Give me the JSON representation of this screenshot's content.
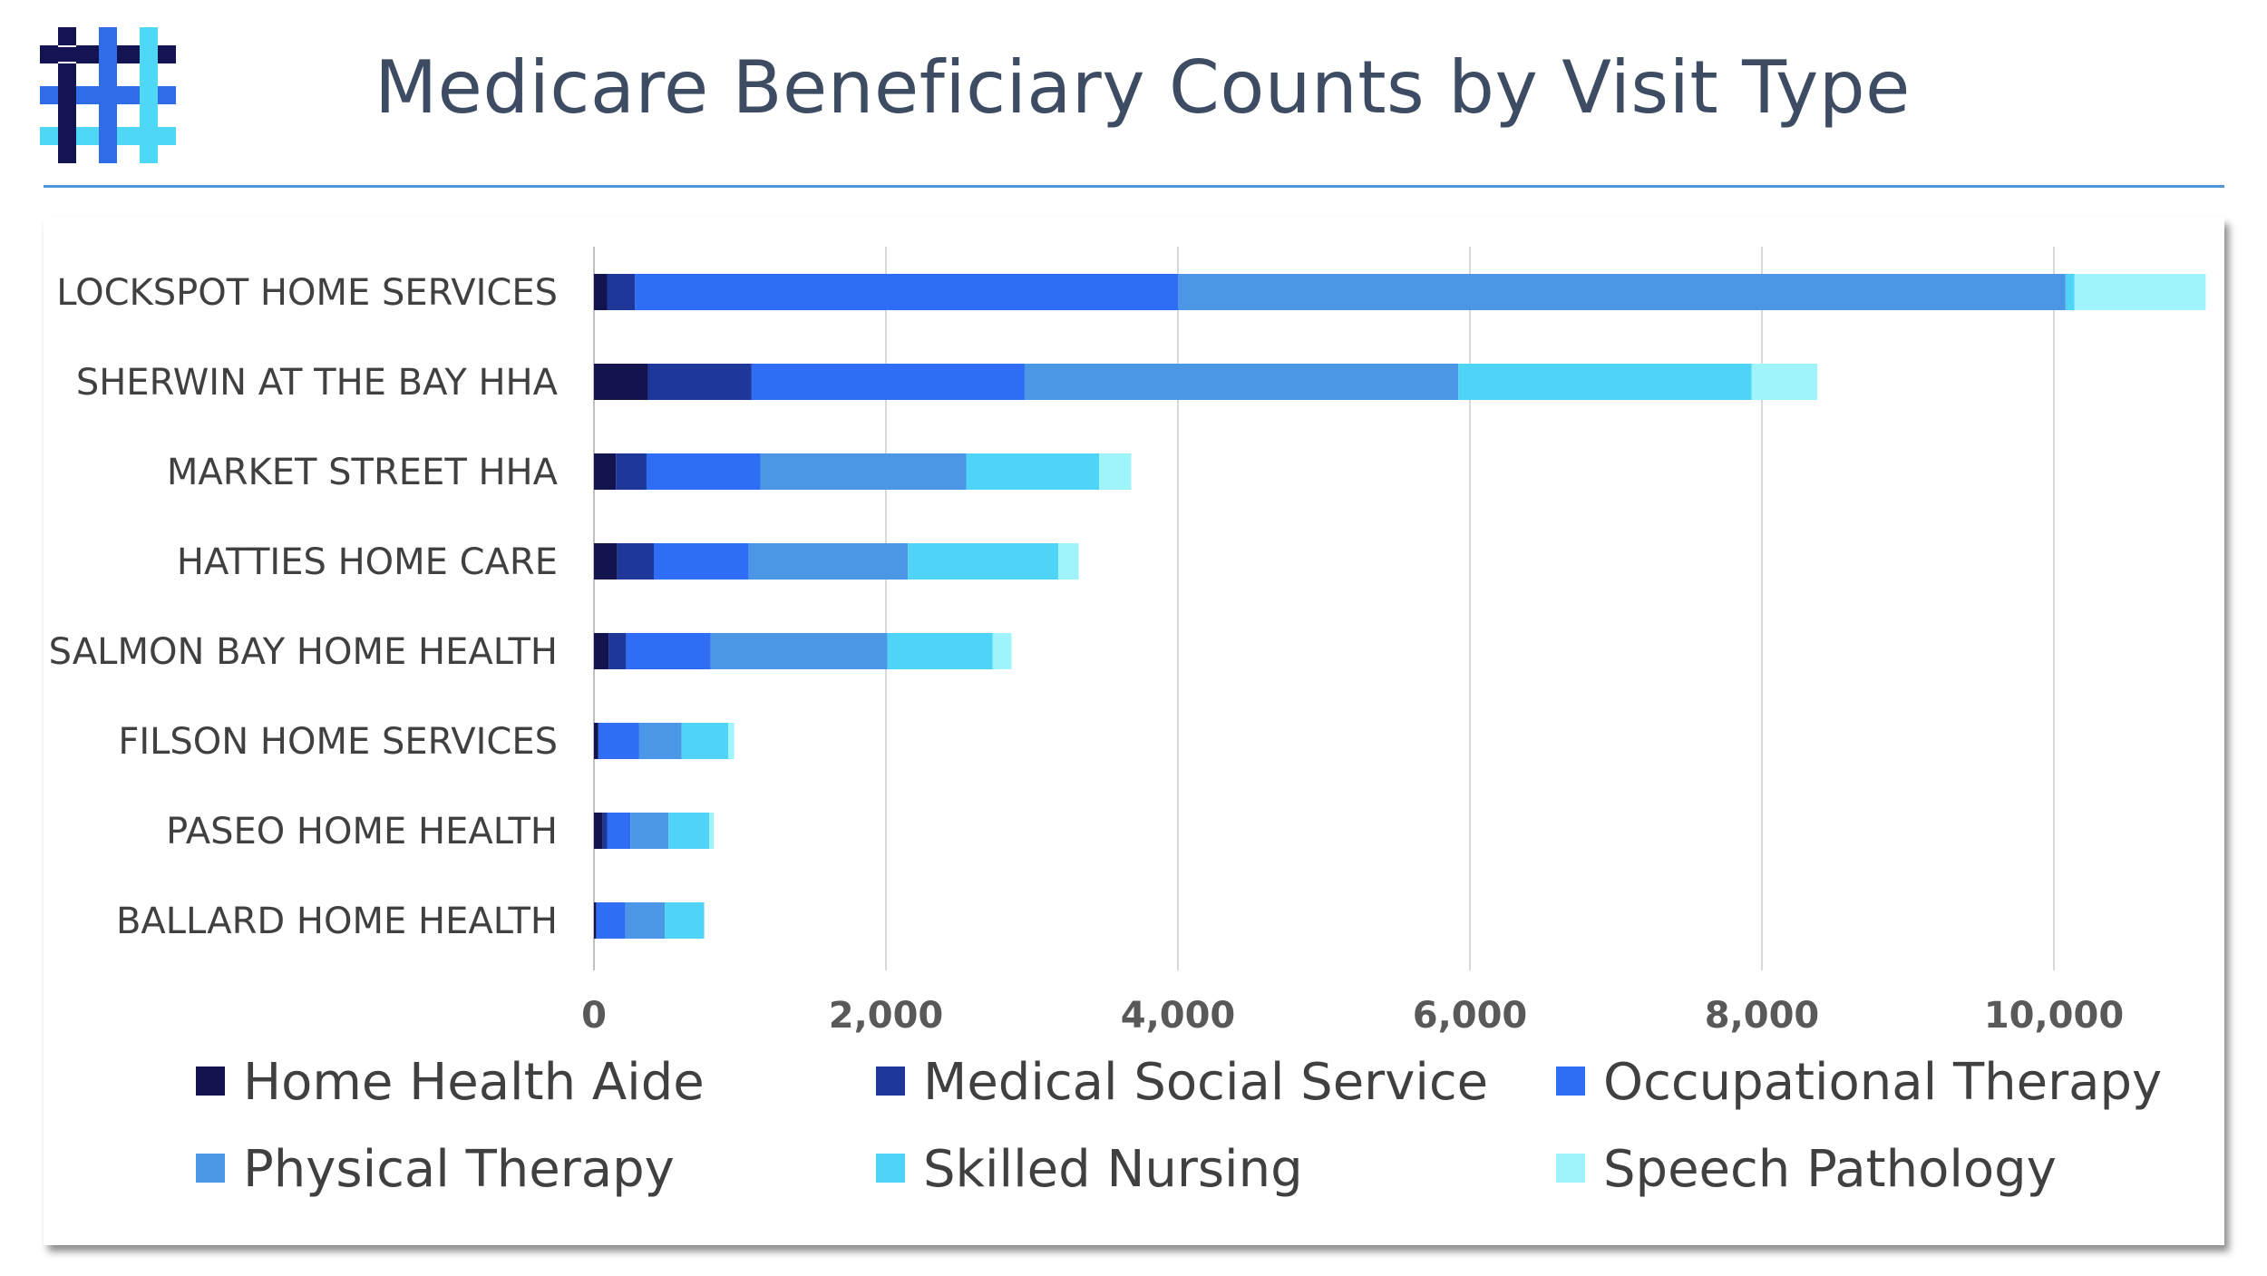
{
  "page": {
    "title": "Medicare Beneficiary Counts by Visit Type"
  },
  "logo": {
    "icon": "hashtag-grid-logo",
    "colors": [
      "#141452",
      "#2f6de8",
      "#4fd8f5"
    ]
  },
  "chart_data": {
    "type": "bar",
    "orientation": "horizontal",
    "stacked": true,
    "title": "",
    "xlabel": "",
    "ylabel": "",
    "xlim": [
      0,
      11000
    ],
    "x_ticks": [
      0,
      2000,
      4000,
      6000,
      8000,
      10000
    ],
    "x_tick_labels": [
      "0",
      "2,000",
      "4,000",
      "6,000",
      "8,000",
      "10,000"
    ],
    "grid": "vertical",
    "legend_position": "bottom",
    "categories": [
      "LOCKSPOT HOME SERVICES",
      "SHERWIN AT THE BAY HHA",
      "MARKET STREET HHA",
      "HATTIES HOME CARE",
      "SALMON BAY HOME HEALTH",
      "FILSON HOME SERVICES",
      "PASEO HOME HEALTH",
      "BALLARD HOME HEALTH"
    ],
    "series": [
      {
        "name": "Home Health Aide",
        "color": "#13144f",
        "values": [
          90,
          370,
          150,
          160,
          100,
          30,
          60,
          15
        ]
      },
      {
        "name": "Medical Social Service",
        "color": "#1d3898",
        "values": [
          190,
          710,
          210,
          250,
          120,
          0,
          30,
          0
        ]
      },
      {
        "name": "Occupational Therapy",
        "color": "#2f6df5",
        "values": [
          3720,
          1870,
          780,
          650,
          580,
          280,
          160,
          200
        ]
      },
      {
        "name": "Physical Therapy",
        "color": "#4b96e5",
        "values": [
          6080,
          2970,
          1410,
          1090,
          1210,
          290,
          260,
          270
        ]
      },
      {
        "name": "Skilled Nursing",
        "color": "#4fd4f8",
        "values": [
          60,
          2010,
          910,
          1030,
          720,
          320,
          280,
          270
        ]
      },
      {
        "name": "Speech Pathology",
        "color": "#9ff3fb",
        "values": [
          900,
          450,
          220,
          140,
          130,
          40,
          30,
          0
        ]
      }
    ]
  }
}
